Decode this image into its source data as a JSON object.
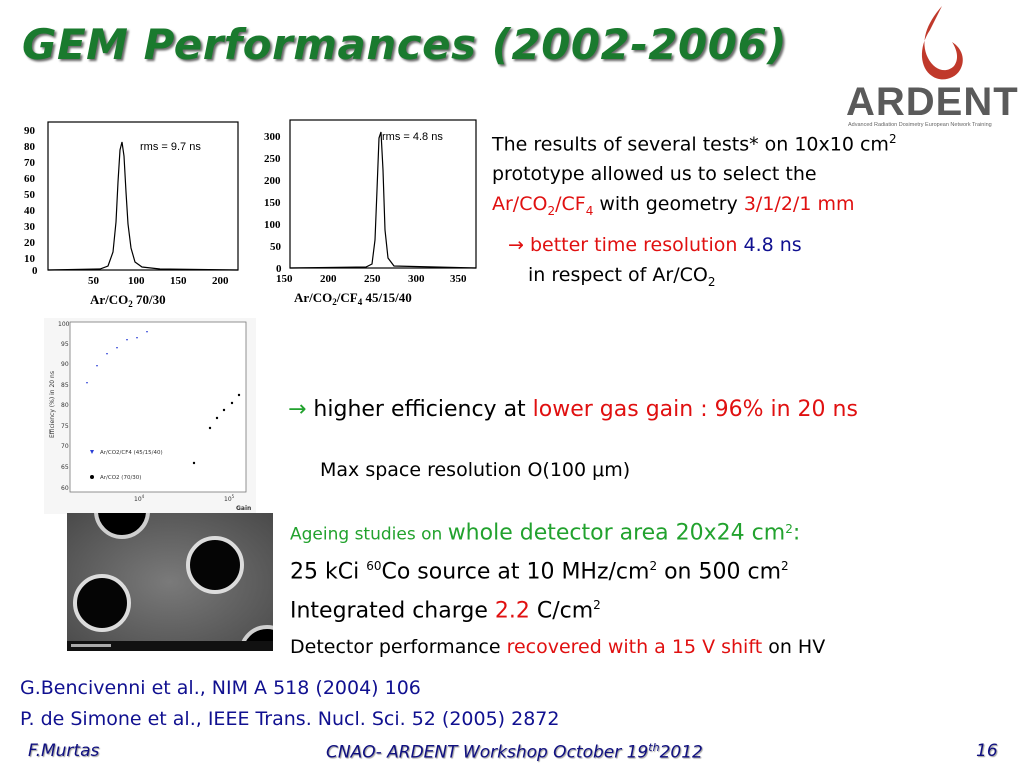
{
  "title": "GEM Performances (2002-2006)",
  "logo": {
    "name": "ARDENT",
    "tagline": "Advanced Radiation Dosimetry European Network Training"
  },
  "histogram_left": {
    "rms": "rms = 9.7 ns",
    "yticks": [
      "90",
      "80",
      "70",
      "60",
      "50",
      "40",
      "30",
      "20",
      "10",
      "0"
    ],
    "xticks": [
      "50",
      "100",
      "150",
      "200"
    ],
    "xlabel": "Ar/CO",
    "xlabel_sub": "2",
    "xlabel_rest": " 70/30"
  },
  "histogram_right": {
    "rms": "rms = 4.8 ns",
    "yticks": [
      "300",
      "250",
      "200",
      "150",
      "100",
      "50",
      "0"
    ],
    "xticks": [
      "150",
      "200",
      "250",
      "300",
      "350"
    ],
    "xlabel": "Ar/CO",
    "xlabel_sub": "2",
    "xlabel_mid": "/CF",
    "xlabel_sub2": "4",
    "xlabel_rest": " 45/15/40"
  },
  "efficiency_plot": {
    "ylabel": "Efficiency (%) in 20 ns",
    "xlabel": "Gain",
    "yticks": [
      "100",
      "95",
      "90",
      "85",
      "80",
      "75",
      "70",
      "65",
      "60"
    ],
    "xticks": [
      "10",
      "10"
    ],
    "xtick_exps": [
      "4",
      "5"
    ],
    "legend": [
      "Ar/CO2/CF4 (45/15/40)",
      "Ar/CO2 (70/30)"
    ]
  },
  "text": {
    "p1_a": "The results of several tests*  on 10x10 cm",
    "p1_a_sup": "2",
    "p1_b": "prototype allowed us to select the",
    "p1_c1": "Ar/CO",
    "p1_c1_sub": "2",
    "p1_c2": "/CF",
    "p1_c2_sub": "4",
    "p1_c3": " with geometry ",
    "p1_c4": "3/1/2/1 mm",
    "p2_arrow": "→",
    "p2_a": " better time resolution ",
    "p2_b": " 4.8 ns",
    "p2_c": "in respect of Ar/CO",
    "p2_c_sub": "2",
    "p3_arrow": "→",
    "p3_a": " higher efficiency at ",
    "p3_b": "lower gas gain : 96% in 20 ns",
    "p4": "Max space resolution O(100 μm)",
    "p5_a": "Ageing studies on ",
    "p5_b": "whole detector area 20x24 cm",
    "p5_b_sup": "2",
    "p5_c": ":",
    "p6_a": "25 kCi ",
    "p6_sup": "60",
    "p6_b": "Co source at 10 MHz/cm",
    "p6_b_sup": "2",
    "p6_c": " on 500 cm",
    "p6_c_sup": "2",
    "p7_a": "Integrated charge ",
    "p7_b": "2.2",
    "p7_c": " C/cm",
    "p7_c_sup": "2",
    "p8_a": "Detector performance ",
    "p8_b": "recovered with a 15 V shift",
    "p8_c": "  on HV",
    "ref1": "G.Bencivenni et al., NIM A 518 (2004) 106",
    "ref2": "P. de Simone et al., IEEE Trans. Nucl. Sci. 52 (2005) 2872"
  },
  "footer": {
    "left": "F.Murtas",
    "center_a": "CNAO- ARDENT Workshop October 19",
    "center_sup": "th",
    "center_b": "2012",
    "right": "16"
  },
  "colors": {
    "title": "#1a7a2e",
    "highlight": "#e01010",
    "green": "#22a22e",
    "blue": "#101090",
    "footer": "#101080"
  }
}
